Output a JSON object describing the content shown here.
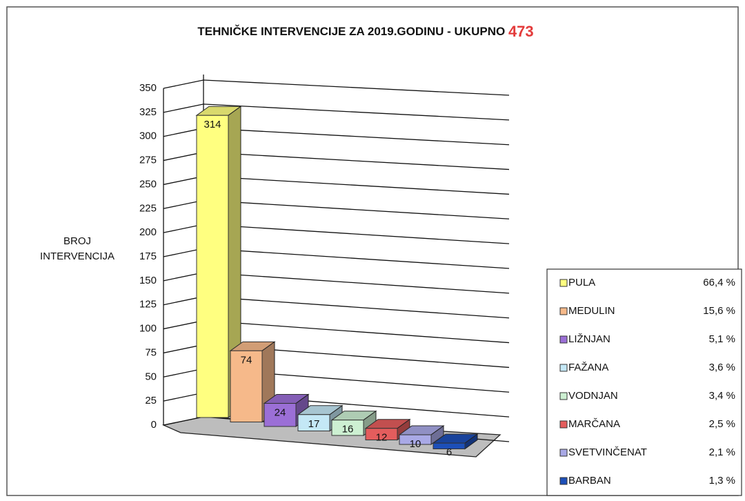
{
  "chart_data": {
    "type": "bar3d",
    "title": "TEHNIČKE INTERVENCIJE ZA 2019.GODINU - UKUPNO",
    "title_total": "473",
    "y_axis_label": [
      "BROJ",
      "INTERVENCIJA"
    ],
    "categories": [
      "PULA",
      "MEDULIN",
      "LIŽNJAN",
      "FAŽANA",
      "VODNJAN",
      "MARČANA",
      "SVETVINČENAT",
      "BARBAN"
    ],
    "values": [
      314,
      74,
      24,
      17,
      16,
      12,
      10,
      6
    ],
    "colors": [
      "#ffff80",
      "#f6b98a",
      "#9b6fd6",
      "#c4e8f6",
      "#cdf0d2",
      "#e45d5d",
      "#a9a9e6",
      "#1d4fb8"
    ],
    "shares": [
      "66,4 %",
      "15,6 %",
      "5,1 %",
      "3,6 %",
      "3,4 %",
      "2,5 %",
      "2,1 %",
      "1,3 %"
    ],
    "ylim": [
      0,
      350
    ],
    "yticks": [
      0,
      25,
      50,
      75,
      100,
      125,
      150,
      175,
      200,
      225,
      250,
      275,
      300,
      325,
      350
    ],
    "grid": true,
    "legend": "right"
  }
}
